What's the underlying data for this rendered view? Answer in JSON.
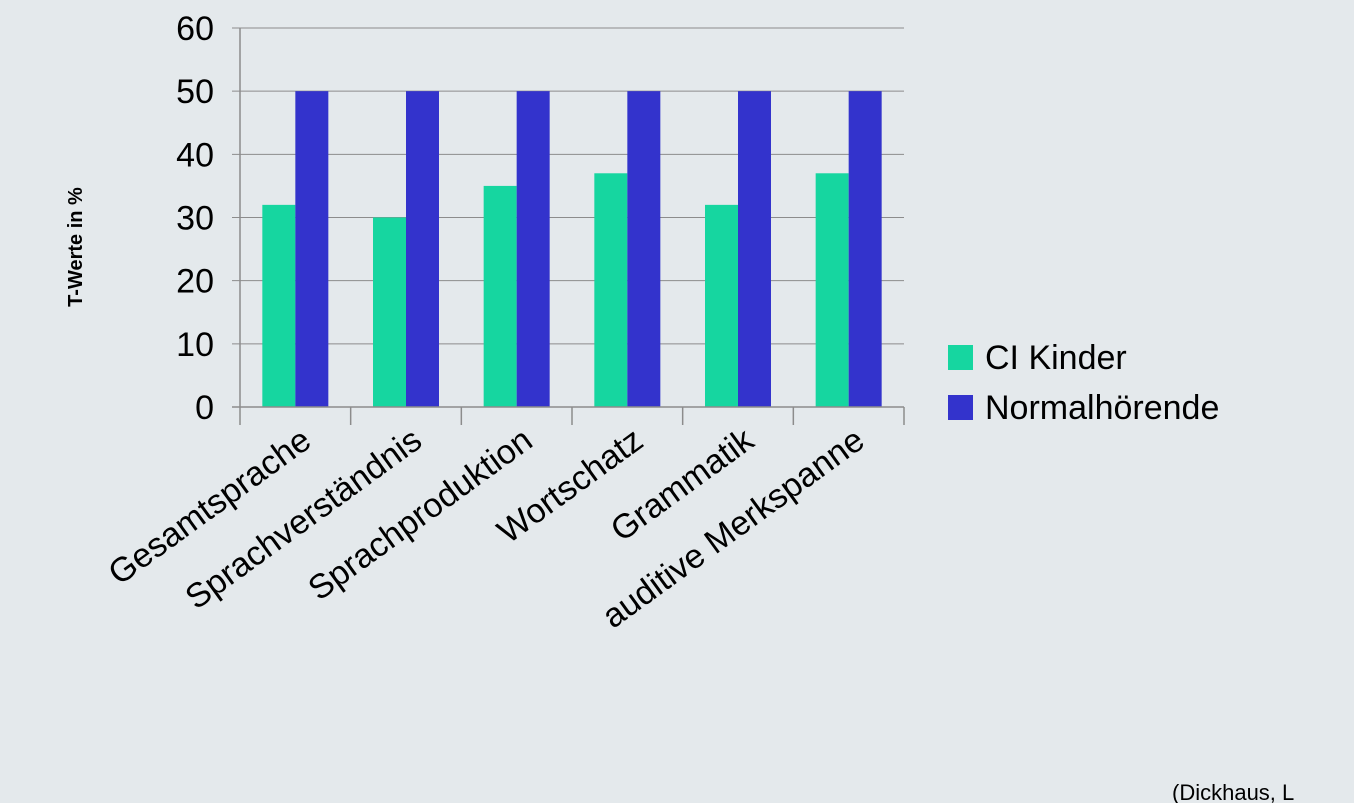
{
  "chart_data": {
    "type": "bar",
    "categories": [
      "Gesamtsprache",
      "Sprachverständnis",
      "Sprachproduktion",
      "Wortschatz",
      "Grammatik",
      "auditive Merkspanne"
    ],
    "series": [
      {
        "name": "CI Kinder",
        "values": [
          32,
          30,
          35,
          37,
          32,
          37
        ],
        "color": "#16d6a0"
      },
      {
        "name": "Normalhörende",
        "values": [
          50,
          50,
          50,
          50,
          50,
          50
        ],
        "color": "#3333cc"
      }
    ],
    "ylabel": "T-Werte in %",
    "ylim": [
      0,
      60
    ],
    "yticks": [
      "0",
      "10",
      "20",
      "30",
      "40",
      "50",
      "60"
    ],
    "grid": true,
    "legend_position": "right"
  },
  "source_note": "(Dickhaus, L"
}
